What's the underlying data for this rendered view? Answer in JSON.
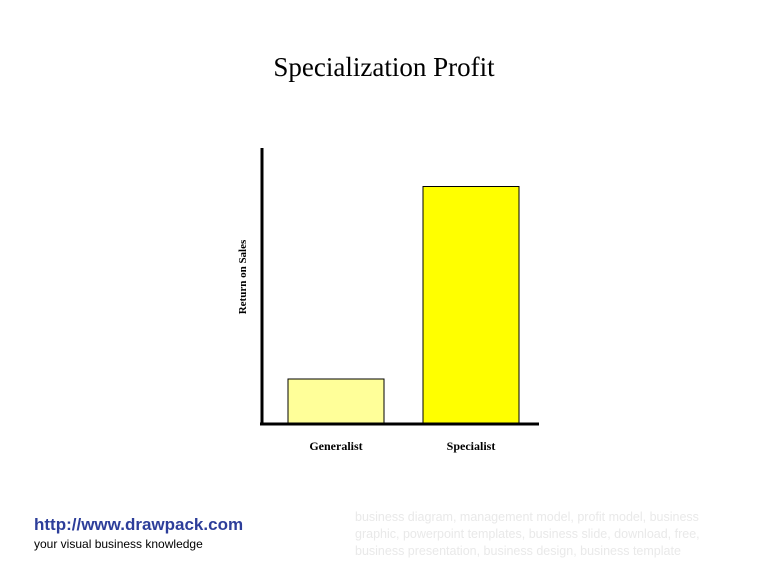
{
  "chart_data": {
    "type": "bar",
    "title": "Specialization Profit",
    "xlabel": "",
    "ylabel": "Return on Sales",
    "categories": [
      "Generalist",
      "Specialist"
    ],
    "values": [
      16,
      86
    ],
    "ylim": [
      0,
      100
    ],
    "bar_colors": [
      "#ffff99",
      "#ffff00"
    ],
    "grid": false,
    "legend": "none"
  },
  "footer": {
    "url": "http://www.drawpack.com",
    "tagline": "your visual business knowledge",
    "keywords": "business diagram, management model, profit model, business graphic, powerpoint templates, business slide, download, free, business presentation, business design, business template"
  }
}
